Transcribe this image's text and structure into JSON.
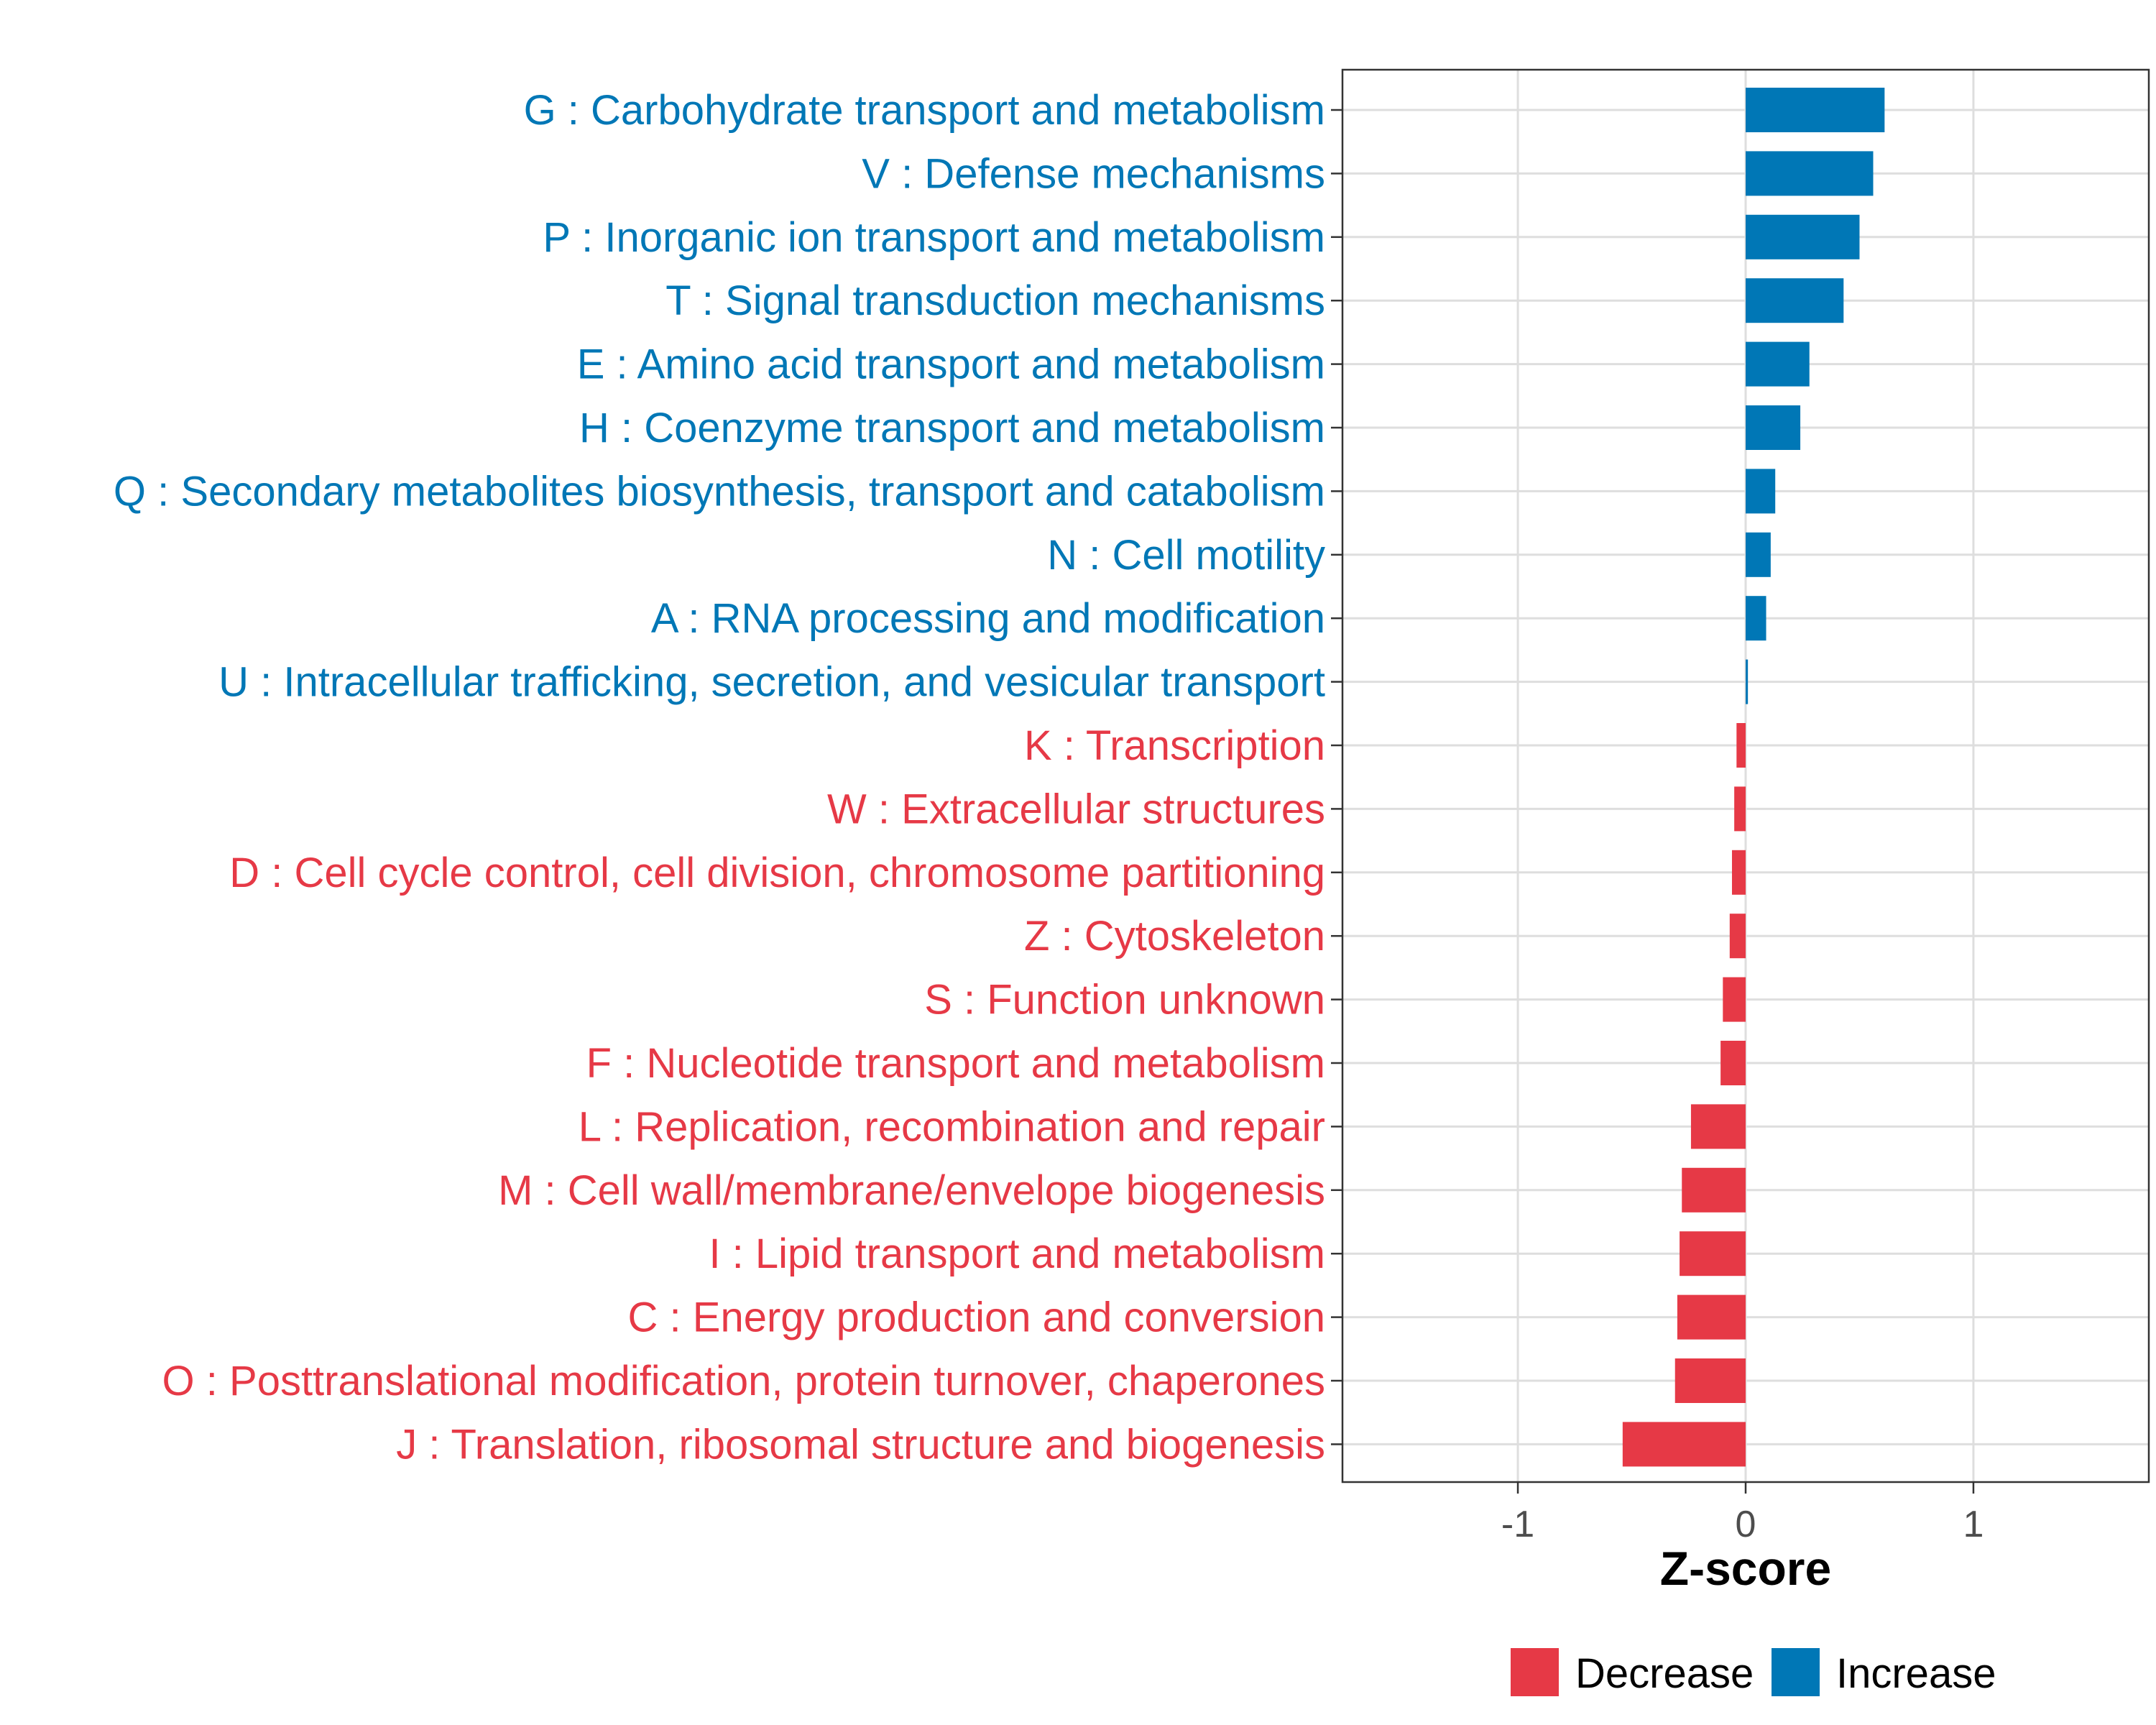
{
  "chart_data": {
    "type": "bar",
    "orientation": "horizontal",
    "title": "",
    "xlabel": "Z-score",
    "ylabel": "",
    "xlim": [
      -1.77,
      1.77
    ],
    "xticks": [
      -1,
      0,
      1
    ],
    "xtick_labels": [
      "-1",
      "0",
      "1"
    ],
    "grid": true,
    "legend_position": "bottom",
    "categories": [
      "G : Carbohydrate transport and metabolism",
      "V : Defense mechanisms",
      "P : Inorganic ion transport and metabolism",
      "T : Signal transduction mechanisms",
      "E : Amino acid transport and metabolism",
      "H : Coenzyme transport and metabolism",
      "Q : Secondary metabolites biosynthesis, transport and catabolism",
      "N : Cell motility",
      "A : RNA processing and modification",
      "U : Intracellular trafficking, secretion, and vesicular transport",
      "K : Transcription",
      "W : Extracellular structures",
      "D : Cell cycle control, cell division, chromosome partitioning",
      "Z : Cytoskeleton",
      "S : Function unknown",
      "F : Nucleotide transport and metabolism",
      "L : Replication, recombination and repair",
      "M : Cell wall/membrane/envelope biogenesis",
      "I : Lipid transport and metabolism",
      "C : Energy production and conversion",
      "O : Posttranslational modification, protein turnover, chaperones",
      "J : Translation, ribosomal structure and biogenesis"
    ],
    "values": [
      0.61,
      0.56,
      0.5,
      0.43,
      0.28,
      0.24,
      0.13,
      0.11,
      0.09,
      0.01,
      -0.04,
      -0.05,
      -0.06,
      -0.07,
      -0.1,
      -0.11,
      -0.24,
      -0.28,
      -0.29,
      -0.3,
      -0.31,
      -0.54
    ],
    "groups": [
      "Increase",
      "Increase",
      "Increase",
      "Increase",
      "Increase",
      "Increase",
      "Increase",
      "Increase",
      "Increase",
      "Increase",
      "Decrease",
      "Decrease",
      "Decrease",
      "Decrease",
      "Decrease",
      "Decrease",
      "Decrease",
      "Decrease",
      "Decrease",
      "Decrease",
      "Decrease",
      "Decrease"
    ],
    "legend": [
      {
        "name": "Decrease",
        "color": "#e63946"
      },
      {
        "name": "Increase",
        "color": "#0077b6"
      }
    ]
  }
}
